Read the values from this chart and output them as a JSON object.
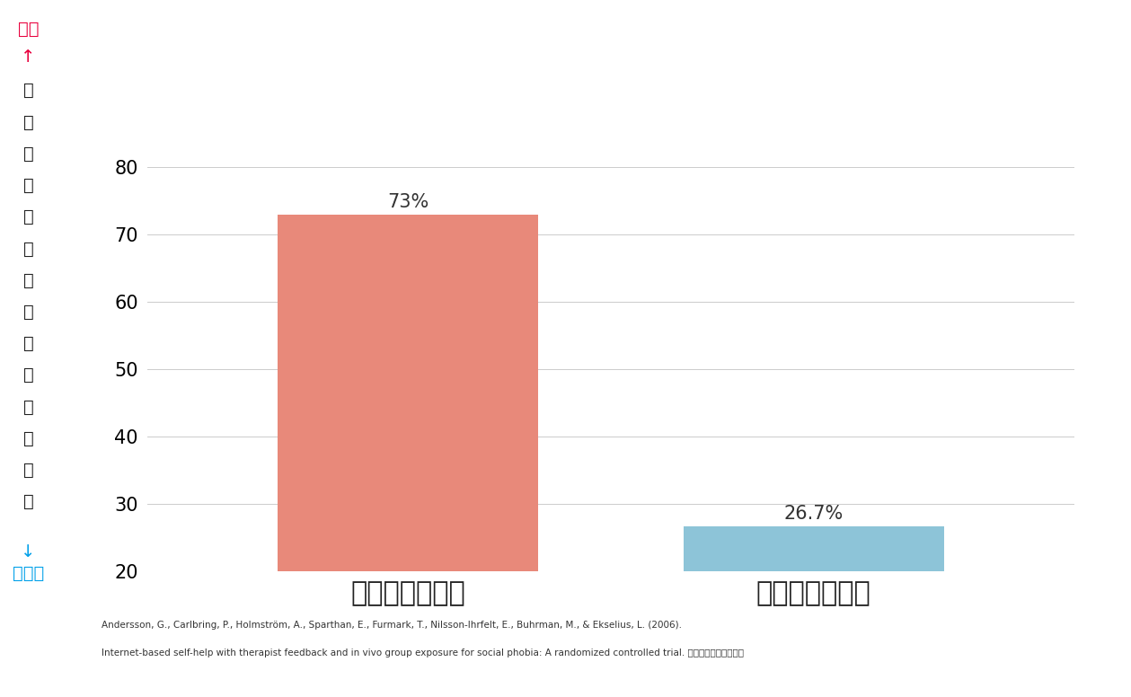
{
  "categories": [
    "治療を受けた人",
    "受けていない人"
  ],
  "values": [
    73,
    26.7
  ],
  "bar_colors": [
    "#E8897A",
    "#8DC4D8"
  ],
  "value_labels": [
    "73%",
    "26.7%"
  ],
  "ylim": [
    20,
    80
  ],
  "yticks": [
    20,
    30,
    40,
    50,
    60,
    70,
    80
  ],
  "ylabel_text": "会話への自信が増えた人の割合",
  "ylabel_top": "多い",
  "ylabel_top_arrow": "↑",
  "ylabel_bottom_arrow": "↓",
  "ylabel_bottom": "少ない",
  "ylabel_top_color": "#E8003D",
  "ylabel_bottom_color": "#00A0E9",
  "citation_line1": "Andersson, G., Carlbring, P., Holmström, A., Sparthan, E., Furmark, T., Nilsson-Ihrfelt, E., Buhrman, M., & Ekselius, L. (2006).",
  "citation_line2": "Internet-based self-help with therapist feedback and in vivo group exposure for social phobia: A randomized controlled trial. より一部編成して掲載",
  "bar_width": 0.45,
  "x_positions": [
    0,
    0.7
  ],
  "background_color": "#ffffff"
}
